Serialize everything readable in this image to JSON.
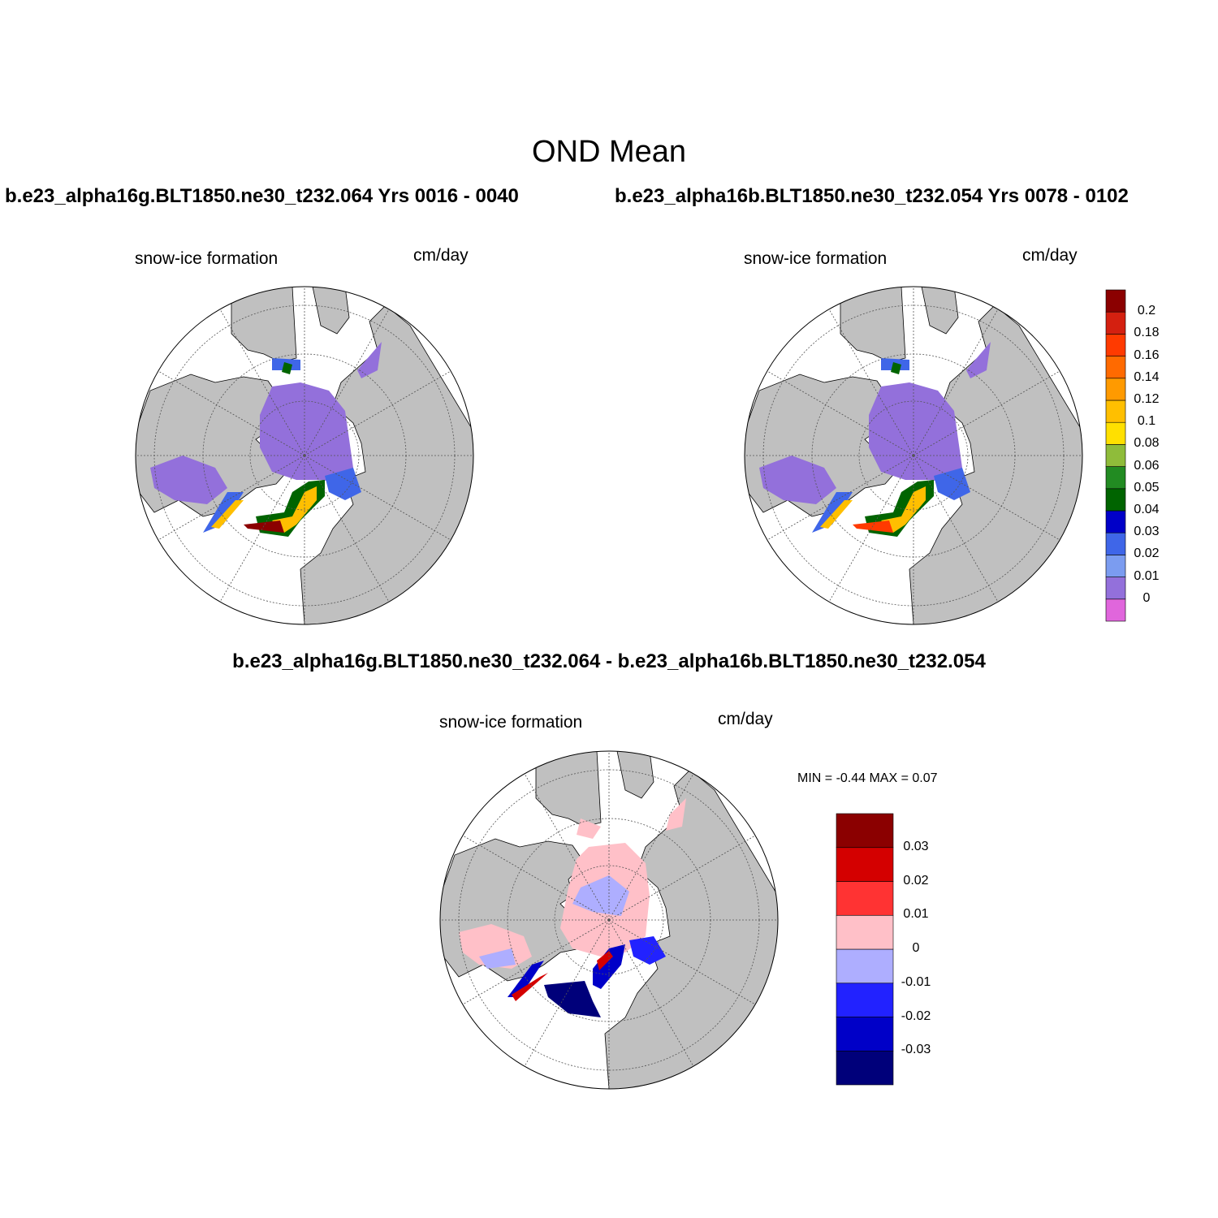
{
  "title": "OND Mean",
  "panels": [
    {
      "id": "case1",
      "title": "b.e23_alpha16g.BLT1850.ne30_t232.064  Yrs 0016 - 0040",
      "left_label": "snow-ice formation",
      "right_label": "cm/day"
    },
    {
      "id": "case2",
      "title": "b.e23_alpha16b.BLT1850.ne30_t232.054  Yrs 0078 - 0102",
      "left_label": "snow-ice formation",
      "right_label": "cm/day"
    },
    {
      "id": "difference",
      "title": "b.e23_alpha16g.BLT1850.ne30_t232.064 - b.e23_alpha16b.BLT1850.ne30_t232.054",
      "left_label": "snow-ice formation",
      "right_label": "cm/day",
      "stats": "MIN =  -0.44 MAX =   0.07"
    }
  ],
  "colorbars": {
    "main": {
      "colors": [
        "#e066dc",
        "#9370db",
        "#7b9cf0",
        "#3f66e8",
        "#0000c8",
        "#006400",
        "#228b22",
        "#8fbc3a",
        "#ffe000",
        "#ffbf00",
        "#ff9a00",
        "#ff6a00",
        "#ff3a00",
        "#d42010",
        "#8b0000"
      ],
      "labels": [
        "0",
        "0.01",
        "0.02",
        "0.03",
        "0.04",
        "0.05",
        "0.06",
        "0.08",
        "0.1",
        "0.12",
        "0.14",
        "0.16",
        "0.18",
        "0.2"
      ]
    },
    "difference": {
      "colors": [
        "#00007a",
        "#0000c8",
        "#2222ff",
        "#aeaeff",
        "#ffc0c8",
        "#ff3333",
        "#d40000",
        "#8b0000"
      ],
      "labels": [
        "-0.03",
        "-0.02",
        "-0.01",
        "0",
        "0.01",
        "0.02",
        "0.03"
      ]
    }
  },
  "colors": {
    "land": "#c0c0c0",
    "ocean": "#ffffff",
    "ice_base": "#9370db",
    "diff_pos": "#ffc0c8",
    "diff_neg": "#aeaeff"
  }
}
